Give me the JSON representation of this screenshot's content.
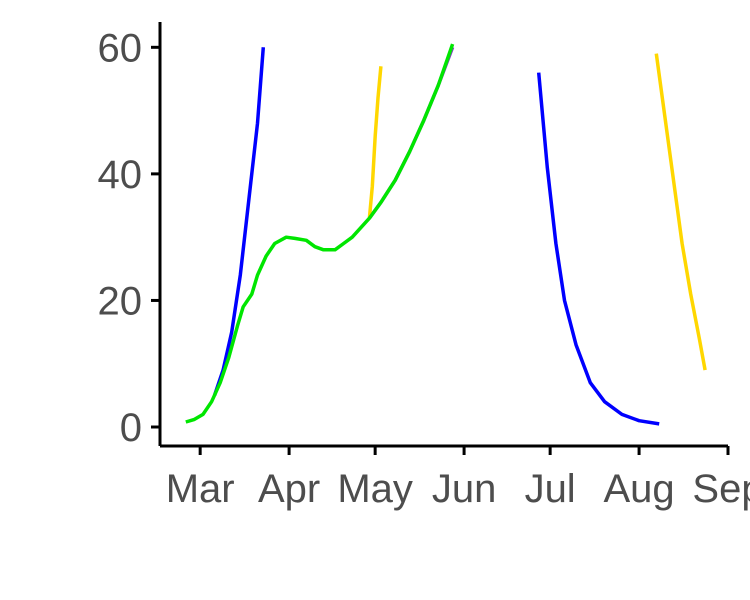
{
  "chart_data": {
    "type": "line",
    "title": "",
    "xlabel": "",
    "ylabel": "",
    "x_axis": {
      "type": "date",
      "range": [
        "2020-02-16",
        "2020-09-01"
      ],
      "ticks": [
        {
          "date": "2020-03-01",
          "label": "Mar"
        },
        {
          "date": "2020-04-01",
          "label": "Apr"
        },
        {
          "date": "2020-05-01",
          "label": "May"
        },
        {
          "date": "2020-06-01",
          "label": "Jun"
        },
        {
          "date": "2020-07-01",
          "label": "Jul"
        },
        {
          "date": "2020-08-01",
          "label": "Aug"
        },
        {
          "date": "2020-09-01",
          "label": "Sep"
        }
      ]
    },
    "y_axis": {
      "range": [
        -3,
        64
      ],
      "ticks": [
        {
          "value": 0,
          "label": "0"
        },
        {
          "value": 20,
          "label": "20"
        },
        {
          "value": 40,
          "label": "40"
        },
        {
          "value": 60,
          "label": "60"
        }
      ]
    },
    "grid": false,
    "legend": "none",
    "series": [
      {
        "color": "#7f3fbf",
        "points": [
          [
            "2020-04-29",
            33
          ],
          [
            "2020-05-03",
            35.5
          ],
          [
            "2020-05-08",
            39
          ],
          [
            "2020-05-13",
            43.5
          ],
          [
            "2020-05-18",
            48.5
          ],
          [
            "2020-05-23",
            54
          ],
          [
            "2020-05-28",
            60
          ]
        ]
      },
      {
        "color": "#0000ff",
        "points": [
          [
            "2020-03-06",
            5
          ],
          [
            "2020-03-09",
            9
          ],
          [
            "2020-03-12",
            15
          ],
          [
            "2020-03-15",
            24
          ],
          [
            "2020-03-18",
            36
          ],
          [
            "2020-03-21",
            48
          ],
          [
            "2020-03-23",
            60
          ]
        ]
      },
      {
        "color": "#0000ff",
        "points": [
          [
            "2020-06-27",
            56
          ],
          [
            "2020-06-30",
            41
          ],
          [
            "2020-07-03",
            29
          ],
          [
            "2020-07-06",
            20
          ],
          [
            "2020-07-10",
            13
          ],
          [
            "2020-07-15",
            7
          ],
          [
            "2020-07-20",
            4
          ],
          [
            "2020-07-26",
            2
          ],
          [
            "2020-08-01",
            1
          ],
          [
            "2020-08-08",
            0.5
          ]
        ]
      },
      {
        "color": "#ffd700",
        "points": [
          [
            "2020-04-29",
            33
          ],
          [
            "2020-04-30",
            38
          ],
          [
            "2020-05-01",
            46
          ],
          [
            "2020-05-02",
            52
          ],
          [
            "2020-05-03",
            57
          ]
        ]
      },
      {
        "color": "#ffd700",
        "points": [
          [
            "2020-08-07",
            59
          ],
          [
            "2020-08-10",
            49
          ],
          [
            "2020-08-13",
            39
          ],
          [
            "2020-08-16",
            29
          ],
          [
            "2020-08-19",
            21
          ],
          [
            "2020-08-22",
            14
          ],
          [
            "2020-08-24",
            9
          ]
        ]
      },
      {
        "color": "#00e600",
        "points": [
          [
            "2020-02-25",
            0.8
          ],
          [
            "2020-02-28",
            1.2
          ],
          [
            "2020-03-02",
            2
          ],
          [
            "2020-03-05",
            4
          ],
          [
            "2020-03-08",
            7
          ],
          [
            "2020-03-11",
            11
          ],
          [
            "2020-03-14",
            16
          ],
          [
            "2020-03-16",
            19
          ],
          [
            "2020-03-19",
            21
          ],
          [
            "2020-03-21",
            24
          ],
          [
            "2020-03-24",
            27
          ],
          [
            "2020-03-27",
            29
          ],
          [
            "2020-03-31",
            30
          ],
          [
            "2020-04-03",
            29.8
          ],
          [
            "2020-04-07",
            29.5
          ],
          [
            "2020-04-10",
            28.5
          ],
          [
            "2020-04-13",
            28
          ],
          [
            "2020-04-17",
            28
          ],
          [
            "2020-04-20",
            29
          ],
          [
            "2020-04-23",
            30
          ],
          [
            "2020-04-26",
            31.5
          ],
          [
            "2020-04-29",
            33
          ],
          [
            "2020-05-03",
            35.5
          ],
          [
            "2020-05-08",
            39
          ],
          [
            "2020-05-13",
            43.5
          ],
          [
            "2020-05-18",
            48.5
          ],
          [
            "2020-05-23",
            54
          ],
          [
            "2020-05-28",
            60.5
          ]
        ]
      }
    ]
  }
}
